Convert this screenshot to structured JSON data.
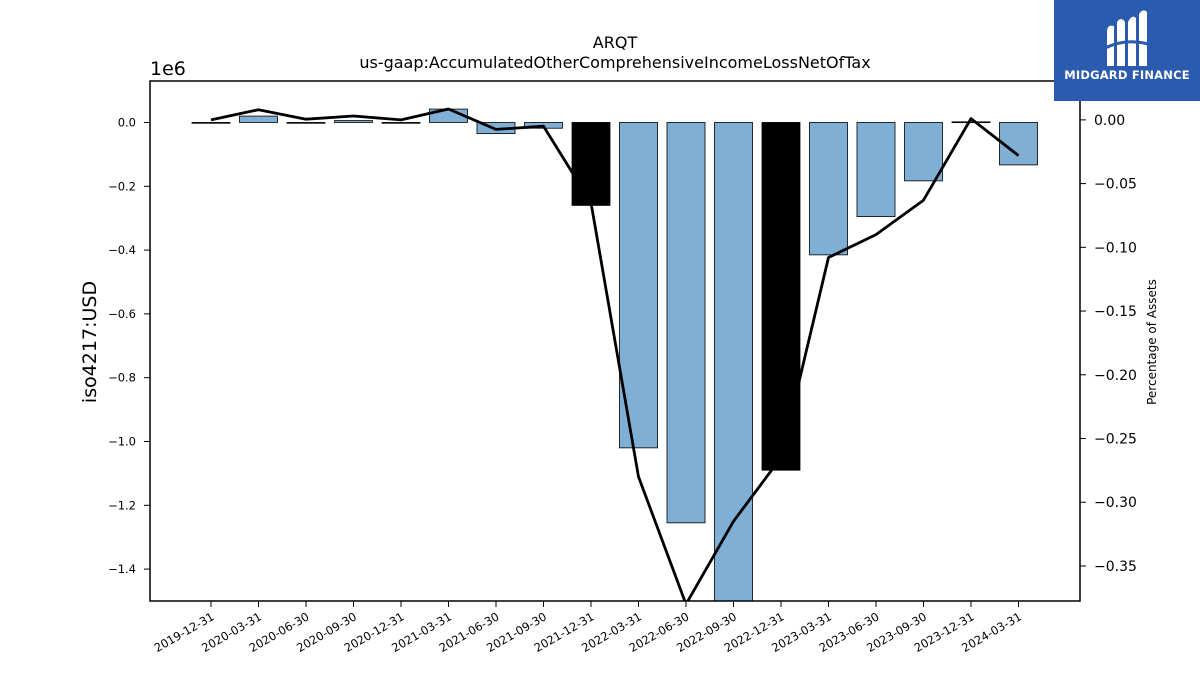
{
  "chart_data": {
    "type": "bar",
    "title": "ARQT",
    "subtitle": "us-gaap:AccumulatedOtherComprehensiveIncomeLossNetOfTax",
    "ylabel": "iso4217:USD",
    "y_offset_label": "1e6",
    "y2label": "Percentage of Assets",
    "categories": [
      "2019-12-31",
      "2020-03-31",
      "2020-06-30",
      "2020-09-30",
      "2020-12-31",
      "2021-03-31",
      "2021-06-30",
      "2021-09-30",
      "2021-12-31",
      "2022-03-31",
      "2022-06-30",
      "2022-09-30",
      "2022-12-31",
      "2023-03-31",
      "2023-06-30",
      "2023-09-30",
      "2023-12-31",
      "2024-03-31"
    ],
    "values": [
      -1000,
      20000,
      -2000,
      6000,
      -1000,
      42000,
      -35000,
      -18000,
      -260000,
      -1020000,
      -1255000,
      -1560000,
      -1090000,
      -415000,
      -295000,
      -183000,
      2000,
      -133000
    ],
    "bar_colors": [
      "#7fafd4",
      "#7fafd4",
      "#7fafd4",
      "#7fafd4",
      "#7fafd4",
      "#7fafd4",
      "#7fafd4",
      "#7fafd4",
      "#000000",
      "#7fafd4",
      "#7fafd4",
      "#7fafd4",
      "#000000",
      "#7fafd4",
      "#7fafd4",
      "#7fafd4",
      "#000000",
      "#7fafd4"
    ],
    "line_values": [
      0.0,
      0.008,
      0.0005,
      0.003,
      0.0,
      0.0085,
      -0.0075,
      -0.005,
      -0.065,
      -0.28,
      -0.38,
      -0.315,
      -0.265,
      -0.108,
      -0.09,
      -0.063,
      0.001,
      -0.028
    ],
    "ylim": [
      -1500000,
      130000
    ],
    "y2lim": [
      -0.3775,
      0.0305
    ],
    "yticks": [
      0,
      -200000,
      -400000,
      -600000,
      -800000,
      -1000000,
      -1200000,
      -1400000
    ],
    "ytick_labels": [
      "0.0",
      "−0.2",
      "−0.4",
      "−0.6",
      "−0.8",
      "−1.0",
      "−1.2",
      "−1.4"
    ],
    "y2ticks": [
      0.0,
      -0.05,
      -0.1,
      -0.15,
      -0.2,
      -0.25,
      -0.3,
      -0.35
    ],
    "y2tick_labels": [
      "0.00",
      "−0.05",
      "−0.10",
      "−0.15",
      "−0.20",
      "−0.25",
      "−0.30",
      "−0.35"
    ],
    "bar_color": "#7fafd4",
    "highlight_color": "#000000",
    "line_color": "#000000",
    "grid": false
  },
  "logo": {
    "text": "MIDGARD FINANCE",
    "background": "#2b5bae"
  }
}
